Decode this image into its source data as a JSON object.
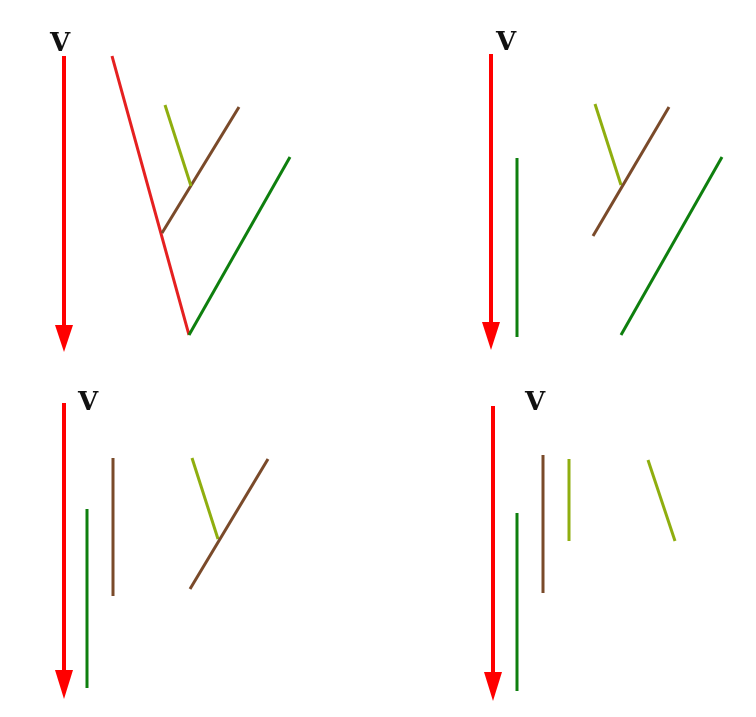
{
  "colors": {
    "arrow": "#ff0000",
    "red_segment": "#e52020",
    "brown": "#7a4a2a",
    "olive": "#8fae0f",
    "green": "#0e7f0e",
    "label": "#111111"
  },
  "panels": [
    {
      "id": "top-left",
      "label": "V"
    },
    {
      "id": "top-right",
      "label": "V"
    },
    {
      "id": "bottom-left",
      "label": "V"
    },
    {
      "id": "bottom-right",
      "label": "V"
    }
  ]
}
